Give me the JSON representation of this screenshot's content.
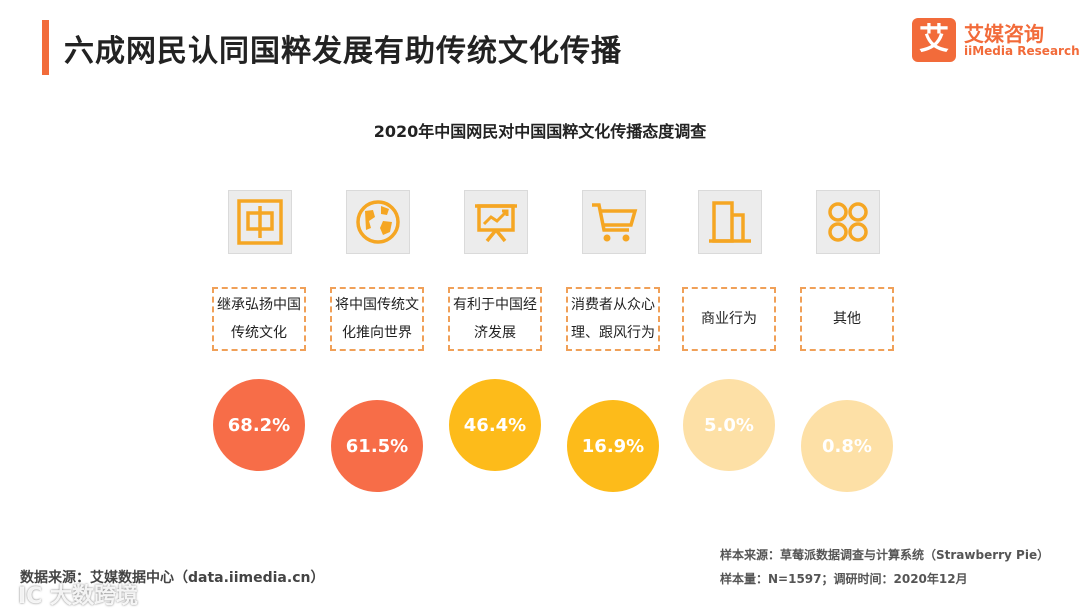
{
  "page": {
    "title": "六成网民认同国粹发展有助传统文化传播"
  },
  "logo": {
    "mark": "艾",
    "name_cn": "艾媒咨询",
    "name_en": "iiMedia Research"
  },
  "chart_data": {
    "type": "bubble",
    "title": "2020年中国网民对中国国粹文化传播态度调查",
    "categories": [
      "继承弘扬中国传统文化",
      "将中国传统文化推向世界",
      "有利于中国经济发展",
      "消费者从众心理、跟风行为",
      "商业行为",
      "其他"
    ],
    "values": [
      68.2,
      61.5,
      46.4,
      16.9,
      5.0,
      0.8
    ],
    "value_labels": [
      "68.2%",
      "61.5%",
      "46.4%",
      "16.9%",
      "5.0%",
      "0.8%"
    ],
    "colors": [
      "#f76d48",
      "#f76d48",
      "#fdbb1a",
      "#fdbb1a",
      "#fde0a6",
      "#fde0a6"
    ],
    "unit": "%",
    "items": [
      {
        "label": "继承弘扬中国传统文化",
        "icon": "china-char-icon",
        "value_label": "68.2%"
      },
      {
        "label": "将中国传统文化推向世界",
        "icon": "globe-icon",
        "value_label": "61.5%"
      },
      {
        "label": "有利于中国经济发展",
        "icon": "presentation-chart-icon",
        "value_label": "46.4%"
      },
      {
        "label": "消费者从众心理、跟风行为",
        "icon": "shopping-cart-icon",
        "value_label": "16.9%"
      },
      {
        "label": "商业行为",
        "icon": "building-icon",
        "value_label": "5.0%"
      },
      {
        "label": "其他",
        "icon": "grid-dots-icon",
        "value_label": "0.8%"
      }
    ]
  },
  "footer": {
    "source": "数据来源：艾媒数据中心（data.iimedia.cn）",
    "sample_source": "样本来源：草莓派数据调查与计算系统（Strawberry Pie）",
    "sample_size": "样本量：N=1597；调研时间：2020年12月",
    "watermark": "IC 大数跨境"
  },
  "colors": {
    "accent": "#f26b3a",
    "icon": "#f5a623",
    "dashed_border": "#f0a058"
  }
}
